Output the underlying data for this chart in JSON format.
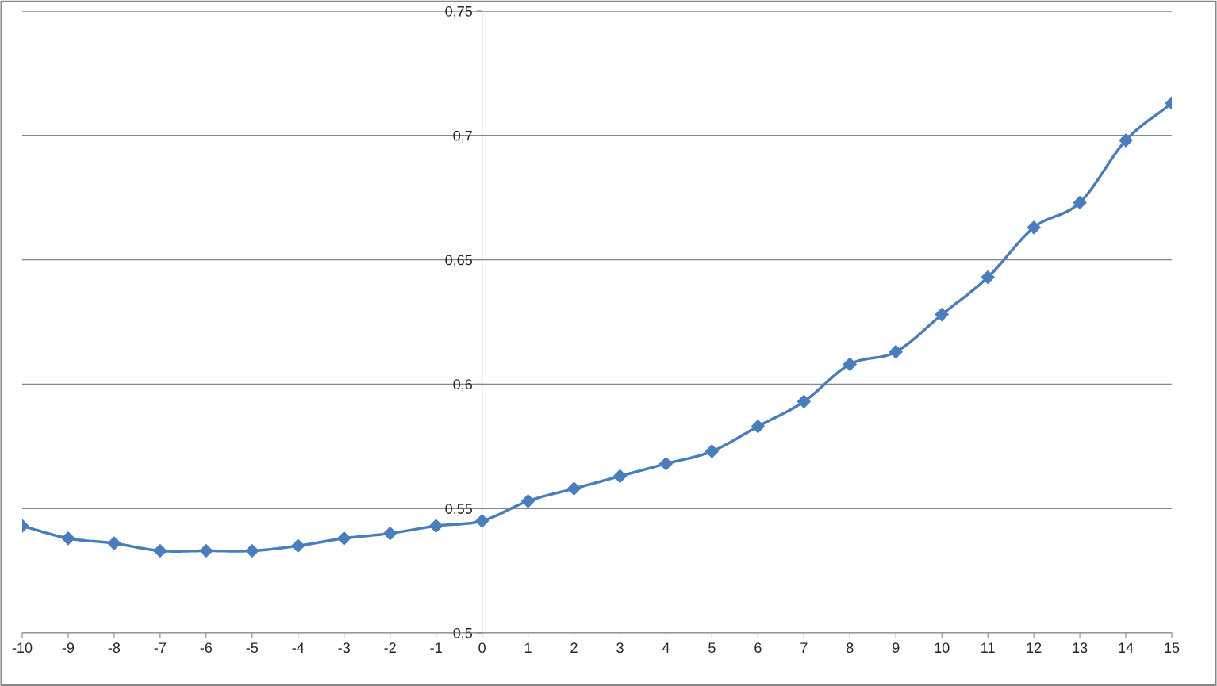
{
  "chart_data": {
    "type": "line",
    "x": [
      -10,
      -9,
      -8,
      -7,
      -6,
      -5,
      -4,
      -3,
      -2,
      -1,
      0,
      1,
      2,
      3,
      4,
      5,
      6,
      7,
      8,
      9,
      10,
      11,
      12,
      13,
      14,
      15
    ],
    "series": [
      {
        "color": "#4a7ebb",
        "values": [
          0.543,
          0.538,
          0.536,
          0.533,
          0.533,
          0.533,
          0.535,
          0.538,
          0.54,
          0.543,
          0.545,
          0.553,
          0.558,
          0.563,
          0.568,
          0.573,
          0.583,
          0.593,
          0.608,
          0.613,
          0.628,
          0.643,
          0.663,
          0.673,
          0.698,
          0.713
        ]
      }
    ],
    "xlim": [
      -10,
      15
    ],
    "xticks": [
      -10,
      -9,
      -8,
      -7,
      -6,
      -5,
      -4,
      -3,
      -2,
      -1,
      0,
      1,
      2,
      3,
      4,
      5,
      6,
      7,
      8,
      9,
      10,
      11,
      12,
      13,
      14,
      15
    ],
    "ylim": [
      0.5,
      0.75
    ],
    "yticks": [
      {
        "value": 0.5,
        "label": "0,5"
      },
      {
        "value": 0.55,
        "label": "0,55"
      },
      {
        "value": 0.6,
        "label": "0,6"
      },
      {
        "value": 0.65,
        "label": "0,65"
      },
      {
        "value": 0.7,
        "label": "0,7"
      },
      {
        "value": 0.75,
        "label": "0,75"
      }
    ],
    "grid": "y",
    "marker": "diamond",
    "line_style": "solid",
    "legend": false
  }
}
